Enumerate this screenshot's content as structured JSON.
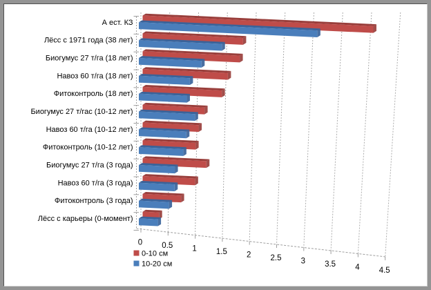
{
  "chart_data": {
    "type": "bar",
    "orientation": "horizontal",
    "style": "3d-clustered",
    "title": "",
    "categories": [
      "А ест. КЗ",
      "Лёсс с 1971 года (38 лет)",
      "Биогумус 27 т/га (18 лет)",
      "Навоз 60 т/га (18 лет)",
      "Фитоконтроль (18 лет)",
      "Биогумус 27 т/гас (10-12 лет)",
      "Навоз 60 т/га (10-12 лет)",
      "Фитоконтроль (10-12 лет)",
      "Биогумус 27 т/га (3 года)",
      "Навоз 60 т/га (3 года)",
      "Фитоконтроль (3 года)",
      "Лёсс с карьеры (0-момент)"
    ],
    "series": [
      {
        "name": "0-10 см",
        "color": "#bf4c49",
        "dark_color": "#993e3b",
        "values": [
          4.0,
          1.75,
          1.7,
          1.5,
          1.4,
          1.1,
          1.0,
          0.95,
          1.15,
          0.95,
          0.7,
          0.3
        ]
      },
      {
        "name": "10-20 см",
        "color": "#4a7ebb",
        "dark_color": "#3a639a",
        "values": [
          3.1,
          1.45,
          1.1,
          0.9,
          0.85,
          1.0,
          0.85,
          0.8,
          0.65,
          0.65,
          0.55,
          0.35
        ]
      }
    ],
    "xlim": [
      0,
      4.5
    ],
    "xticks": [
      0,
      0.5,
      1,
      1.5,
      2,
      2.5,
      3,
      3.5,
      4,
      4.5
    ],
    "xtick_labels": [
      "0",
      "0.5",
      "1",
      "1.5",
      "2",
      "2.5",
      "3",
      "3.5",
      "4",
      "4.5"
    ],
    "grid": true,
    "legend_position": "bottom-left",
    "colors": {
      "grid": "#ababab",
      "axis": "#9e9e9e",
      "text": "#000000",
      "background": "#ffffff",
      "frame": "#949494"
    }
  }
}
